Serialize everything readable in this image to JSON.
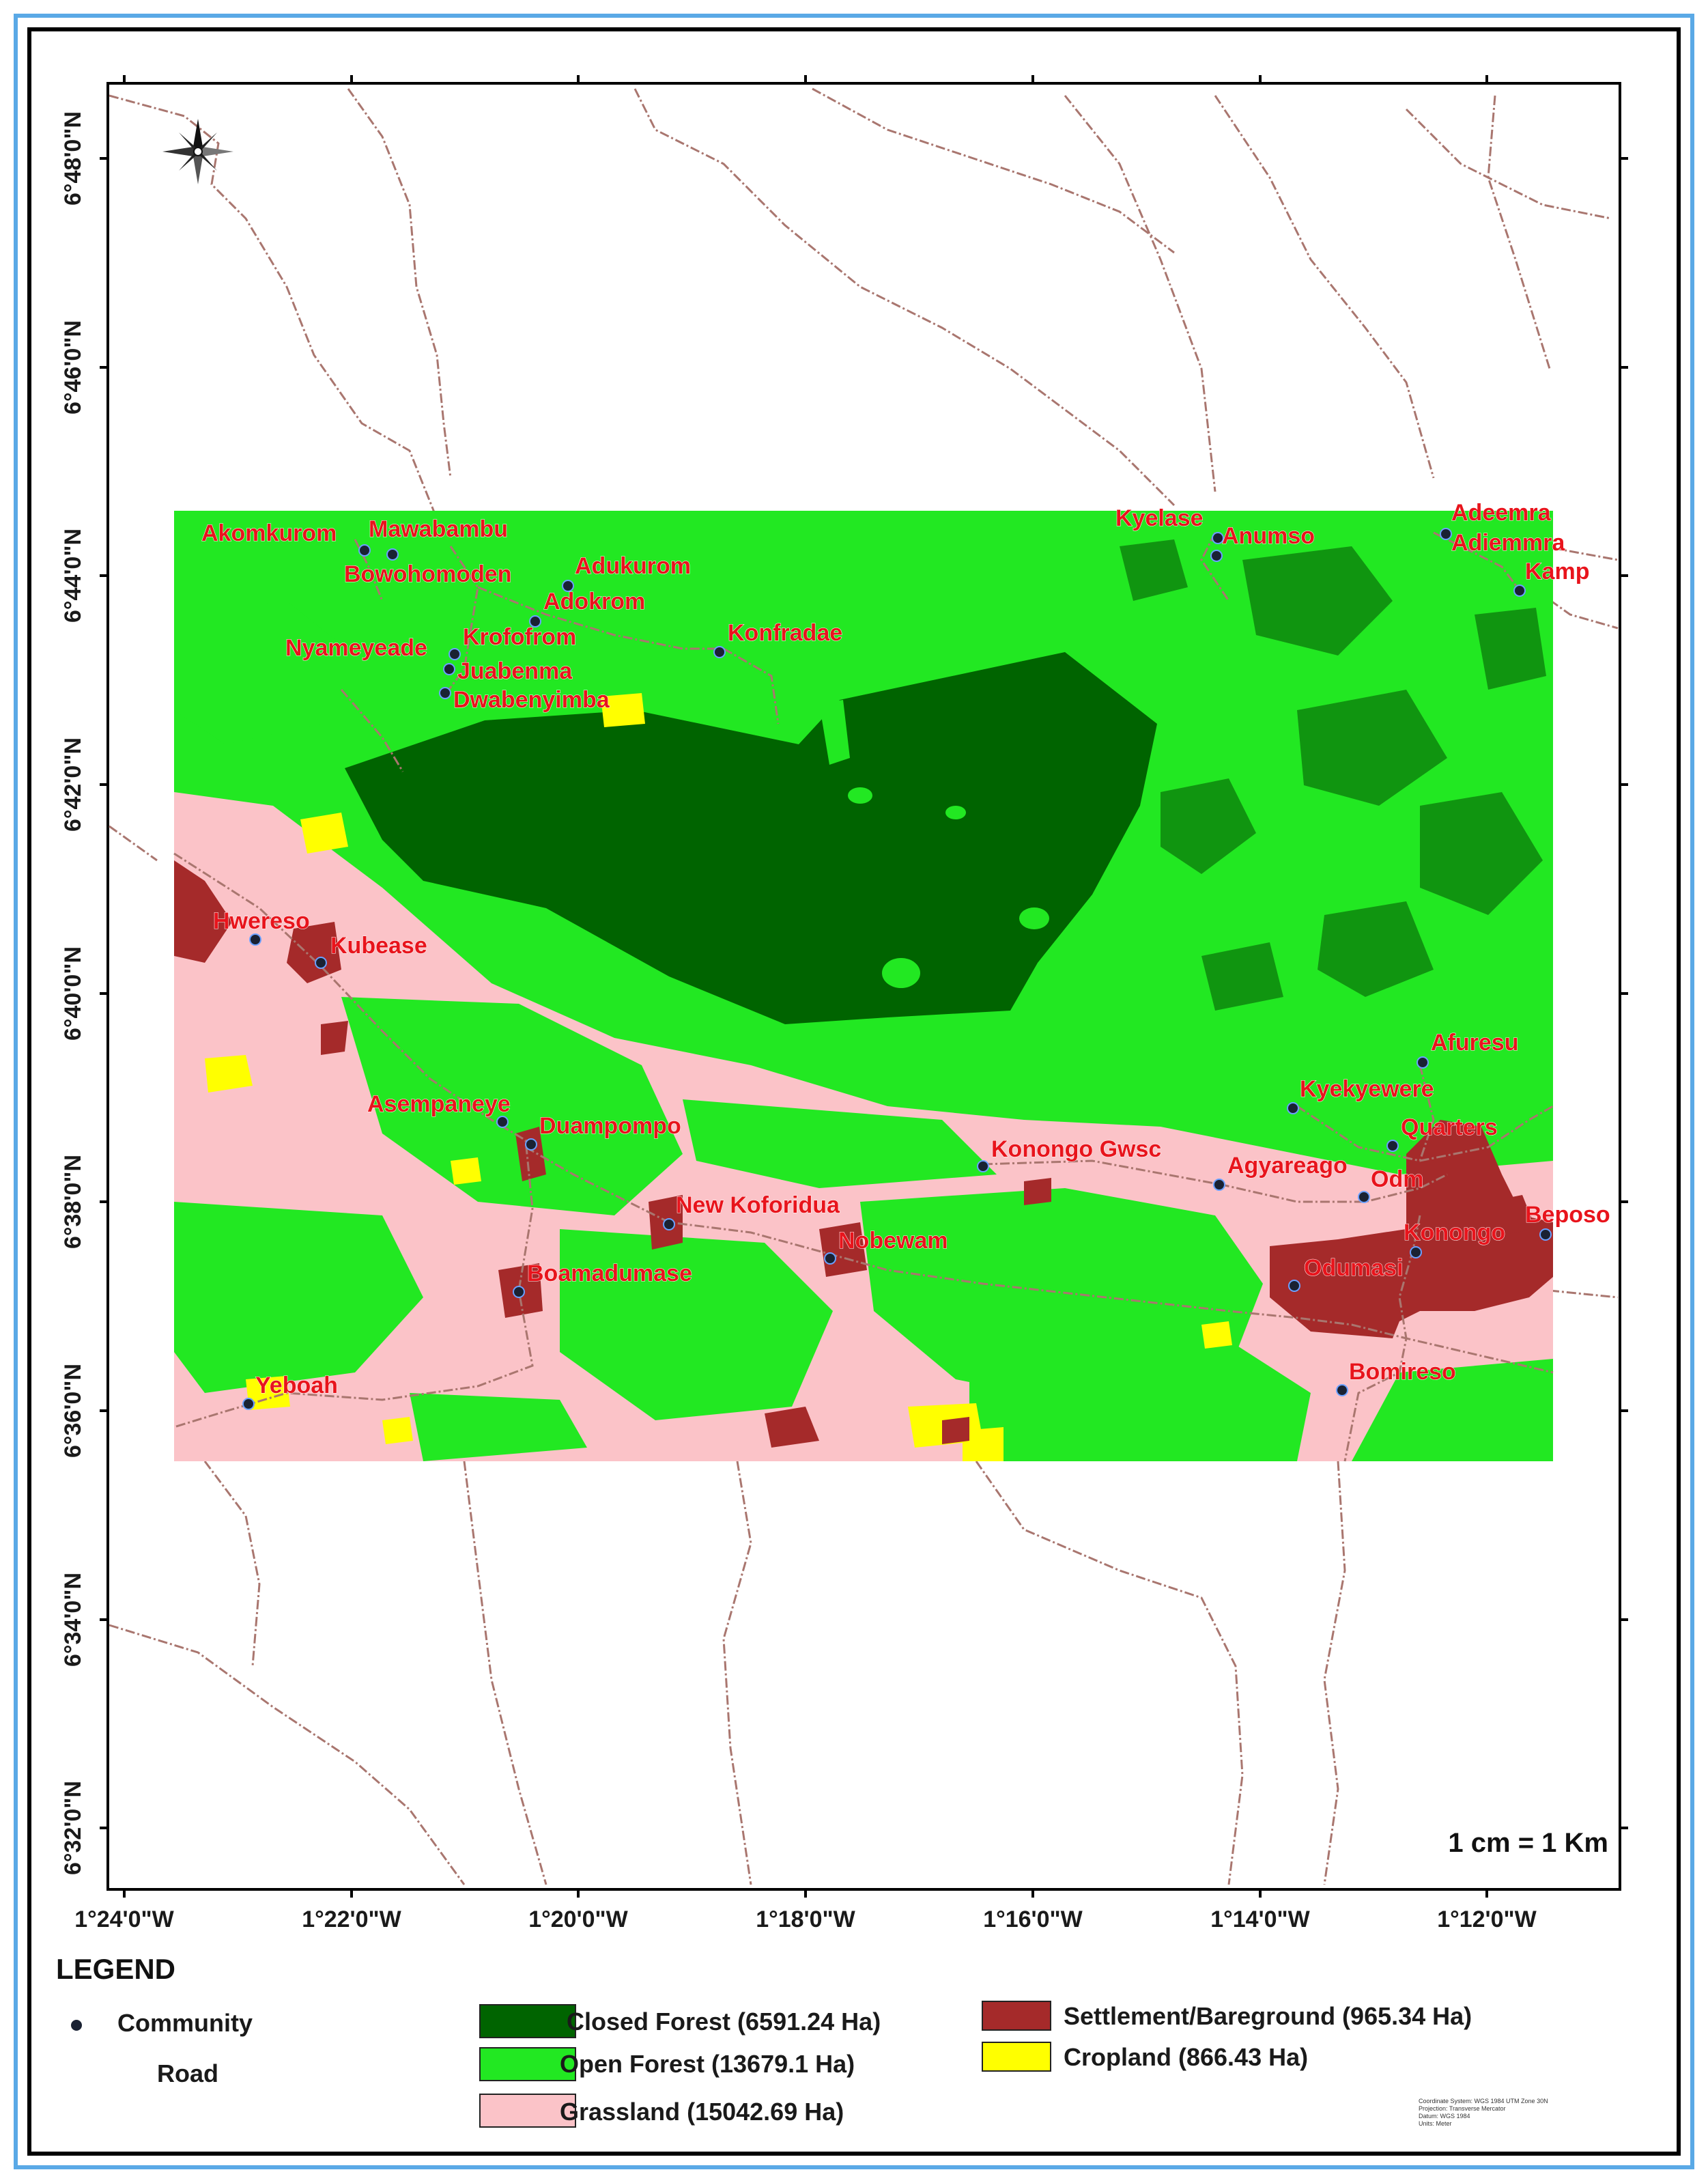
{
  "map": {
    "scale_text": "1 cm = 1 Km",
    "latitude_labels": [
      "6°48'0\"N",
      "6°46'0\"N",
      "6°44'0\"N",
      "6°42'0\"N",
      "6°40'0\"N",
      "6°38'0\"N",
      "6°36'0\"N",
      "6°34'0\"N",
      "6°32'0\"N"
    ],
    "longitude_labels": [
      "1°24'0\"W",
      "1°22'0\"W",
      "1°20'0\"W",
      "1°18'0\"W",
      "1°16'0\"W",
      "1°14'0\"W",
      "1°12'0\"W"
    ],
    "colors": {
      "closed_forest": "#006400",
      "open_forest": "#22e822",
      "grassland": "#fbc3c8",
      "settlement": "#a52a2a",
      "cropland": "#ffff00",
      "road": "#a9766f",
      "label": "#e8141c",
      "community": "#1a2233"
    },
    "communities": [
      "Akomkurom",
      "Mawabambu",
      "Bowohomoden",
      "Adukurom",
      "Adokrom",
      "Nyameyeade",
      "Krofofrom",
      "Juabenma",
      "Dwabenyimba",
      "Konfradae",
      "Kyelase",
      "Anumso",
      "Adeemra",
      "Adiemmra",
      "Kamp",
      "Hwereso",
      "Kubease",
      "Asempaneye",
      "Duampompo",
      "Konongo Gwsc",
      "Kyekyewere",
      "Afuresu",
      "Quarters",
      "Agyareago",
      "Odm",
      "Konongo",
      "Beposo",
      "New Koforidua",
      "Nobewam",
      "Boamadumase",
      "Yeboah",
      "Bomireso",
      "Odumasi"
    ]
  },
  "legend": {
    "title": "LEGEND",
    "community": "Community",
    "road": "Road",
    "closed_forest": "Closed Forest (6591.24 Ha)",
    "open_forest": "Open Forest (13679.1 Ha)",
    "grassland": "Grassland (15042.69 Ha)",
    "settlement": "Settlement/Bareground (965.34 Ha)",
    "cropland": "Cropland (866.43 Ha)"
  },
  "credits": [
    "Coordinate System: WGS 1984 UTM Zone 30N",
    "Projection: Transverse Mercator",
    "Datum: WGS 1984",
    "Units: Meter"
  ]
}
